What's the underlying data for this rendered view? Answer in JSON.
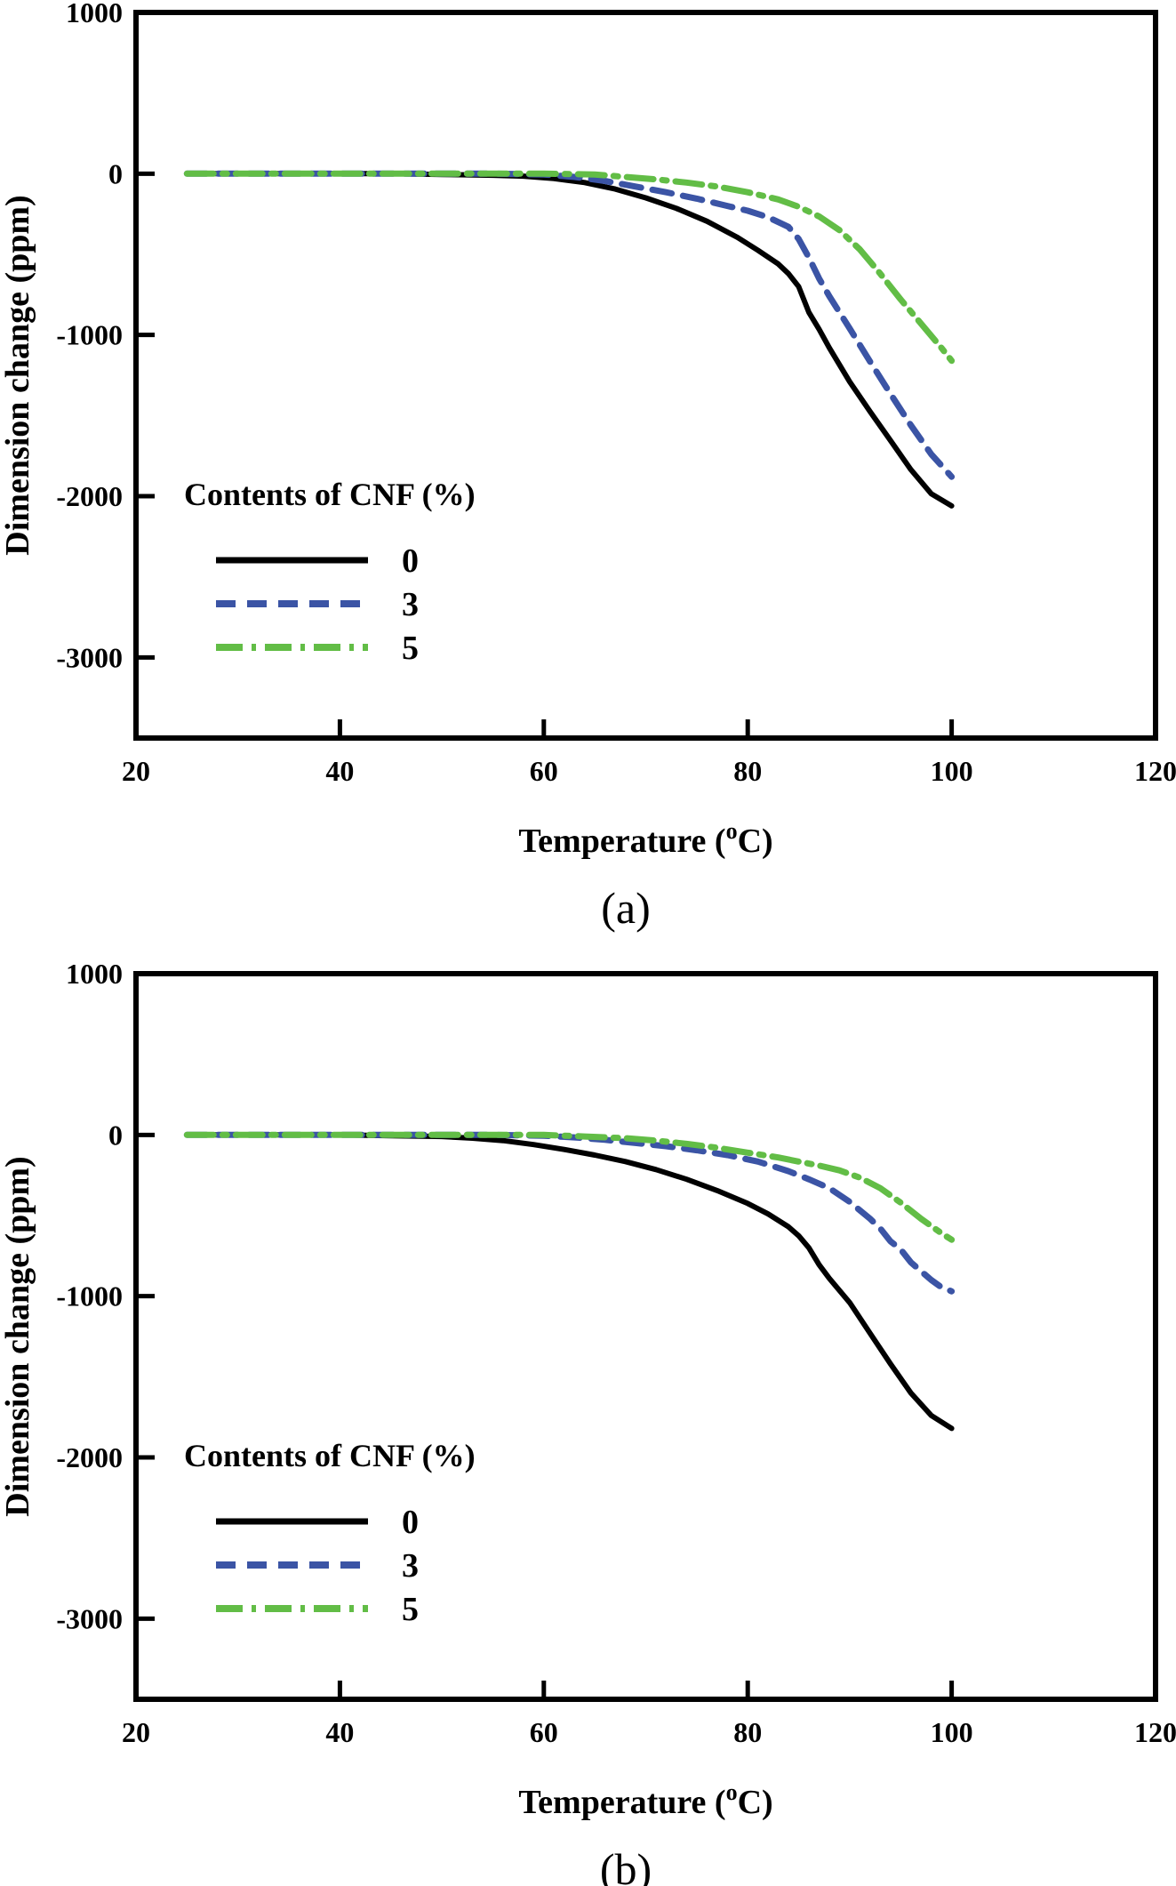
{
  "page": {
    "background": "#ffffff"
  },
  "chart_data": [
    {
      "type": "line",
      "panel": "a",
      "caption": "(a)",
      "title": "",
      "xlabel": "Temperature (°C)",
      "ylabel": "Dimension change (ppm)",
      "xlim": [
        20,
        120
      ],
      "ylim": [
        -3500,
        1000
      ],
      "xticks": [
        20,
        40,
        60,
        80,
        100,
        120
      ],
      "yticks": [
        1000,
        0,
        -1000,
        -2000,
        -3000
      ],
      "grid": false,
      "legend": {
        "title": "Contents of CNF (%)",
        "position": "lower-left"
      },
      "series": [
        {
          "name": "0",
          "color": "#000000",
          "style": "solid",
          "x": [
            25,
            30,
            35,
            40,
            45,
            50,
            55,
            58,
            61,
            64,
            67,
            70,
            73,
            76,
            79,
            81,
            83,
            84,
            85,
            86,
            87,
            88,
            90,
            92,
            94,
            96,
            98,
            100
          ],
          "y": [
            0,
            0,
            0,
            0,
            0,
            -5,
            -10,
            -15,
            -30,
            -55,
            -95,
            -150,
            -215,
            -295,
            -395,
            -475,
            -560,
            -620,
            -700,
            -860,
            -965,
            -1080,
            -1290,
            -1475,
            -1655,
            -1835,
            -1985,
            -2060
          ]
        },
        {
          "name": "3",
          "color": "#3b54a5",
          "style": "dashed",
          "x": [
            25,
            30,
            35,
            40,
            45,
            50,
            55,
            60,
            63,
            66,
            69,
            72,
            75,
            78,
            80,
            82,
            84,
            85,
            86,
            87,
            88,
            90,
            92,
            94,
            96,
            98,
            100
          ],
          "y": [
            0,
            0,
            0,
            0,
            0,
            0,
            0,
            -5,
            -20,
            -45,
            -80,
            -115,
            -155,
            -200,
            -230,
            -270,
            -330,
            -405,
            -520,
            -650,
            -760,
            -960,
            -1165,
            -1365,
            -1560,
            -1740,
            -1880
          ]
        },
        {
          "name": "5",
          "color": "#62bd46",
          "style": "dash-dot",
          "x": [
            25,
            30,
            35,
            40,
            45,
            50,
            55,
            60,
            65,
            68,
            71,
            74,
            77,
            80,
            83,
            85,
            87,
            89,
            91,
            93,
            95,
            97,
            99,
            100
          ],
          "y": [
            0,
            0,
            0,
            0,
            0,
            0,
            0,
            0,
            -5,
            -20,
            -35,
            -55,
            -80,
            -115,
            -160,
            -205,
            -265,
            -350,
            -470,
            -620,
            -780,
            -930,
            -1080,
            -1160
          ]
        }
      ]
    },
    {
      "type": "line",
      "panel": "b",
      "caption": "(b)",
      "title": "",
      "xlabel": "Temperature (°C)",
      "ylabel": "Dimension change (ppm)",
      "xlim": [
        20,
        120
      ],
      "ylim": [
        -3500,
        1000
      ],
      "xticks": [
        20,
        40,
        60,
        80,
        100,
        120
      ],
      "yticks": [
        1000,
        0,
        -1000,
        -2000,
        -3000
      ],
      "grid": false,
      "legend": {
        "title": "Contents of CNF (%)",
        "position": "lower-left"
      },
      "series": [
        {
          "name": "0",
          "color": "#000000",
          "style": "solid",
          "x": [
            25,
            30,
            35,
            40,
            45,
            50,
            53,
            56,
            59,
            62,
            65,
            68,
            71,
            74,
            77,
            80,
            82,
            84,
            85,
            86,
            87,
            88,
            90,
            92,
            94,
            96,
            98,
            100
          ],
          "y": [
            0,
            0,
            0,
            0,
            -5,
            -10,
            -20,
            -35,
            -60,
            -90,
            -125,
            -165,
            -215,
            -275,
            -345,
            -425,
            -490,
            -570,
            -625,
            -700,
            -805,
            -890,
            -1040,
            -1230,
            -1420,
            -1600,
            -1740,
            -1820
          ]
        },
        {
          "name": "3",
          "color": "#3b54a5",
          "style": "dashed",
          "x": [
            25,
            35,
            45,
            55,
            60,
            63,
            66,
            69,
            72,
            75,
            78,
            81,
            84,
            86,
            88,
            90,
            92,
            93,
            94,
            95,
            96,
            97,
            98,
            99,
            100
          ],
          "y": [
            0,
            0,
            0,
            0,
            -5,
            -15,
            -30,
            -50,
            -70,
            -95,
            -125,
            -165,
            -225,
            -275,
            -330,
            -415,
            -520,
            -580,
            -660,
            -710,
            -790,
            -845,
            -900,
            -945,
            -970
          ]
        },
        {
          "name": "5",
          "color": "#62bd46",
          "style": "dash-dot",
          "x": [
            25,
            35,
            45,
            55,
            60,
            64,
            68,
            71,
            74,
            77,
            80,
            83,
            85,
            87,
            89,
            91,
            93,
            95,
            97,
            99,
            100
          ],
          "y": [
            0,
            0,
            0,
            0,
            0,
            -10,
            -20,
            -35,
            -55,
            -80,
            -110,
            -140,
            -165,
            -190,
            -220,
            -265,
            -330,
            -420,
            -520,
            -610,
            -650
          ]
        }
      ]
    }
  ]
}
